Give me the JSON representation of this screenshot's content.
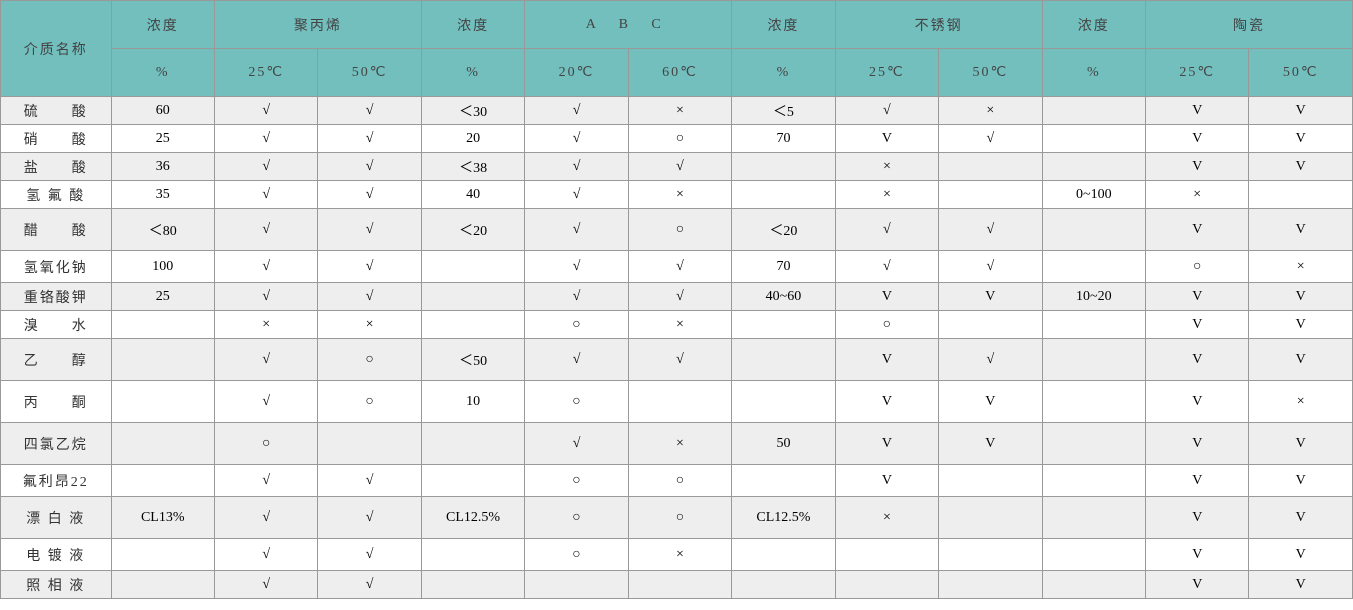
{
  "type": "table",
  "colors": {
    "header_bg": "#72bfbe",
    "odd_row_bg": "#efeeee",
    "even_row_bg": "#ffffff",
    "border": "#999999",
    "header_text": "#444444",
    "cell_text": "#333333"
  },
  "typography": {
    "font_family": "SimSun",
    "base_fontsize": 14
  },
  "col_widths_pct": [
    8.15,
    7.63,
    7.63,
    7.63,
    7.63,
    7.63,
    7.63,
    7.63,
    7.63,
    7.63,
    7.63,
    7.63,
    7.63
  ],
  "header": {
    "row1": [
      "介质名称",
      "浓度",
      "聚丙烯",
      "浓度",
      "A  B  C",
      "浓度",
      "不锈钢",
      "浓度",
      "陶瓷"
    ],
    "row2": [
      "%",
      "25℃",
      "50℃",
      "%",
      "20℃",
      "60℃",
      "%",
      "25℃",
      "50℃",
      "%",
      "25℃",
      "50℃"
    ]
  },
  "rows": [
    {
      "name": "硫　　酸",
      "cells": [
        "60",
        "√",
        "√",
        "＜30",
        "√",
        "×",
        "＜5",
        "√",
        "×",
        "",
        "V",
        "V"
      ]
    },
    {
      "name": "硝　　酸",
      "cells": [
        "25",
        "√",
        "√",
        "20",
        "√",
        "○",
        "70",
        "V",
        "√",
        "",
        "V",
        "V"
      ]
    },
    {
      "name": "盐　　酸",
      "cells": [
        "36",
        "√",
        "√",
        "＜38",
        "√",
        "√",
        "",
        "×",
        "",
        "",
        "V",
        "V"
      ]
    },
    {
      "name": "氢 氟 酸",
      "cells": [
        "35",
        "√",
        "√",
        "40",
        "√",
        "×",
        "",
        "×",
        "",
        "0~100",
        "×",
        ""
      ]
    },
    {
      "name": "醋　　酸",
      "cells": [
        "＜80",
        "√",
        "√",
        "＜20",
        "√",
        "○",
        "＜20",
        "√",
        "√",
        "",
        "V",
        "V"
      ]
    },
    {
      "name": "氢氧化钠",
      "cells": [
        "100",
        "√",
        "√",
        "",
        "√",
        "√",
        "70",
        "√",
        "√",
        "",
        "○",
        "×"
      ]
    },
    {
      "name": "重铬酸钾",
      "cells": [
        "25",
        "√",
        "√",
        "",
        "√",
        "√",
        "40~60",
        "V",
        "V",
        "10~20",
        "V",
        "V"
      ]
    },
    {
      "name": "溴　　水",
      "cells": [
        "",
        "×",
        "×",
        "",
        "○",
        "×",
        "",
        "○",
        "",
        "",
        "V",
        "V"
      ]
    },
    {
      "name": "乙　　醇",
      "cells": [
        "",
        "√",
        "○",
        "＜50",
        "√",
        "√",
        "",
        "V",
        "√",
        "",
        "V",
        "V"
      ]
    },
    {
      "name": "丙　　酮",
      "cells": [
        "",
        "√",
        "○",
        "10",
        "○",
        "",
        "",
        "V",
        "V",
        "",
        "V",
        "×"
      ]
    },
    {
      "name": "四氯乙烷",
      "cells": [
        "",
        "○",
        "",
        "",
        "√",
        "×",
        "50",
        "V",
        "V",
        "",
        "V",
        "V"
      ]
    },
    {
      "name": "氟利昂22",
      "cells": [
        "",
        "√",
        "√",
        "",
        "○",
        "○",
        "",
        "V",
        "",
        "",
        "V",
        "V"
      ]
    },
    {
      "name": "漂 白 液",
      "cells": [
        "CL13%",
        "√",
        "√",
        "CL12.5%",
        "○",
        "○",
        "CL12.5%",
        "×",
        "",
        "",
        "V",
        "V"
      ]
    },
    {
      "name": "电 镀 液",
      "cells": [
        "",
        "√",
        "√",
        "",
        "○",
        "×",
        "",
        "",
        "",
        "",
        "V",
        "V"
      ]
    },
    {
      "name": "照 相 液",
      "cells": [
        "",
        "√",
        "√",
        "",
        "",
        "",
        "",
        "",
        "",
        "",
        "V",
        "V"
      ]
    }
  ],
  "row_heights": [
    "short",
    "short",
    "short",
    "short",
    "tall",
    "med",
    "short",
    "short",
    "tall",
    "tall",
    "tall",
    "med",
    "tall",
    "med",
    "short"
  ]
}
